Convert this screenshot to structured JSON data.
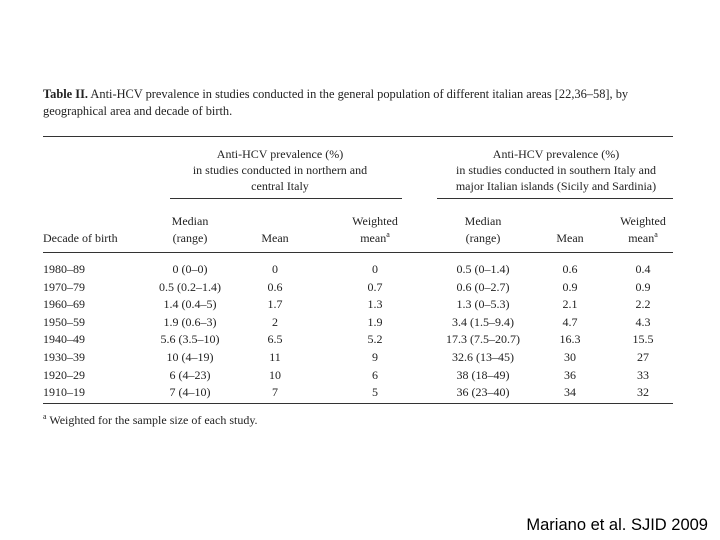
{
  "table": {
    "label": "Table II.",
    "title": "Anti-HCV prevalence in studies conducted in the general population of different italian areas [22,36–58], by geographical area and decade of birth.",
    "group_north": [
      "Anti-HCV prevalence (%)",
      "in studies conducted in northern and",
      "central Italy"
    ],
    "group_south": [
      "Anti-HCV prevalence (%)",
      "in studies conducted in southern Italy and",
      "major Italian islands (Sicily and Sardinia)"
    ],
    "col_decade": "Decade of birth",
    "col_median_1": "Median",
    "col_median_2": "(range)",
    "col_mean": "Mean",
    "col_weighted_1": "Weighted",
    "col_weighted_2": "mean",
    "col_weighted_sup": "a",
    "rows": [
      {
        "decade": "1980–89",
        "n_median": "0 (0–0)",
        "n_mean": "0",
        "n_wmean": "0",
        "s_median": "0.5 (0–1.4)",
        "s_mean": "0.6",
        "s_wmean": "0.4"
      },
      {
        "decade": "1970–79",
        "n_median": "0.5 (0.2–1.4)",
        "n_mean": "0.6",
        "n_wmean": "0.7",
        "s_median": "0.6 (0–2.7)",
        "s_mean": "0.9",
        "s_wmean": "0.9"
      },
      {
        "decade": "1960–69",
        "n_median": "1.4 (0.4–5)",
        "n_mean": "1.7",
        "n_wmean": "1.3",
        "s_median": "1.3 (0–5.3)",
        "s_mean": "2.1",
        "s_wmean": "2.2"
      },
      {
        "decade": "1950–59",
        "n_median": "1.9 (0.6–3)",
        "n_mean": "2",
        "n_wmean": "1.9",
        "s_median": "3.4 (1.5–9.4)",
        "s_mean": "4.7",
        "s_wmean": "4.3"
      },
      {
        "decade": "1940–49",
        "n_median": "5.6 (3.5–10)",
        "n_mean": "6.5",
        "n_wmean": "5.2",
        "s_median": "17.3 (7.5–20.7)",
        "s_mean": "16.3",
        "s_wmean": "15.5"
      },
      {
        "decade": "1930–39",
        "n_median": "10 (4–19)",
        "n_mean": "11",
        "n_wmean": "9",
        "s_median": "32.6 (13–45)",
        "s_mean": "30",
        "s_wmean": "27"
      },
      {
        "decade": "1920–29",
        "n_median": "6 (4–23)",
        "n_mean": "10",
        "n_wmean": "6",
        "s_median": "38 (18–49)",
        "s_mean": "36",
        "s_wmean": "33"
      },
      {
        "decade": "1910–19",
        "n_median": "7 (4–10)",
        "n_mean": "7",
        "n_wmean": "5",
        "s_median": "36 (23–40)",
        "s_mean": "34",
        "s_wmean": "32"
      }
    ],
    "footnote_sup": "a",
    "footnote": "Weighted for the sample size of each study."
  },
  "credit": "Mariano et al. SJID 2009"
}
